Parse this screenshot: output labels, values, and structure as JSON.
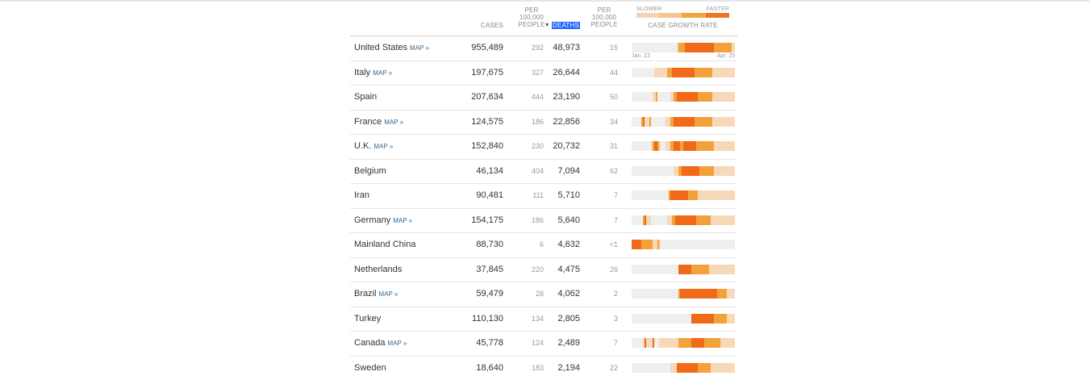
{
  "header": {
    "cases": "CASES",
    "per100k_cases": "PER\n100,000\nPEOPLE",
    "deaths": "DEATHS",
    "per100k_deaths": "PER\n100,000\nPEOPLE",
    "legend_slower": "SLOWER",
    "legend_faster": "FASTER",
    "growth": "CASE GROWTH RATE",
    "sort_icon": "▼"
  },
  "dates": {
    "start": "Jan. 22",
    "end": "Apr. 25"
  },
  "rows": [
    {
      "country": "United States",
      "map": "MAP »",
      "cases": "955,489",
      "per100k_cases": "292",
      "deaths": "48,973",
      "per100k_deaths": "15"
    },
    {
      "country": "Italy",
      "map": "MAP »",
      "cases": "197,675",
      "per100k_cases": "327",
      "deaths": "26,644",
      "per100k_deaths": "44"
    },
    {
      "country": "Spain",
      "map": "",
      "cases": "207,634",
      "per100k_cases": "444",
      "deaths": "23,190",
      "per100k_deaths": "50"
    },
    {
      "country": "France",
      "map": "MAP »",
      "cases": "124,575",
      "per100k_cases": "186",
      "deaths": "22,856",
      "per100k_deaths": "34"
    },
    {
      "country": "U.K.",
      "map": "MAP »",
      "cases": "152,840",
      "per100k_cases": "230",
      "deaths": "20,732",
      "per100k_deaths": "31"
    },
    {
      "country": "Belgium",
      "map": "",
      "cases": "46,134",
      "per100k_cases": "404",
      "deaths": "7,094",
      "per100k_deaths": "62"
    },
    {
      "country": "Iran",
      "map": "",
      "cases": "90,481",
      "per100k_cases": "111",
      "deaths": "5,710",
      "per100k_deaths": "7"
    },
    {
      "country": "Germany",
      "map": "MAP »",
      "cases": "154,175",
      "per100k_cases": "186",
      "deaths": "5,640",
      "per100k_deaths": "7"
    },
    {
      "country": "Mainland China",
      "map": "",
      "cases": "88,730",
      "per100k_cases": "6",
      "deaths": "4,632",
      "per100k_deaths": "<1"
    },
    {
      "country": "Netherlands",
      "map": "",
      "cases": "37,845",
      "per100k_cases": "220",
      "deaths": "4,475",
      "per100k_deaths": "26"
    },
    {
      "country": "Brazil",
      "map": "MAP »",
      "cases": "59,479",
      "per100k_cases": "28",
      "deaths": "4,062",
      "per100k_deaths": "2"
    },
    {
      "country": "Turkey",
      "map": "",
      "cases": "110,130",
      "per100k_cases": "134",
      "deaths": "2,805",
      "per100k_deaths": "3"
    },
    {
      "country": "Canada",
      "map": "MAP »",
      "cases": "45,778",
      "per100k_cases": "124",
      "deaths": "2,489",
      "per100k_deaths": "7"
    },
    {
      "country": "Sweden",
      "map": "",
      "cases": "18,640",
      "per100k_cases": "183",
      "deaths": "2,194",
      "per100k_deaths": "22"
    }
  ],
  "growth_rates": [
    [
      0,
      0,
      0,
      0,
      0,
      0,
      0,
      0,
      0,
      0,
      0,
      0,
      0,
      0,
      0,
      0,
      0,
      0,
      0,
      0,
      0,
      0,
      0,
      0,
      0,
      0,
      0,
      0,
      1,
      2,
      2,
      2,
      2,
      3,
      3,
      3,
      3,
      3,
      3,
      3,
      3,
      3,
      3,
      3,
      3,
      3,
      3,
      3,
      3,
      3,
      3,
      2,
      2,
      2,
      2,
      2,
      2,
      2,
      2,
      2,
      2,
      2,
      1,
      1
    ],
    [
      0,
      0,
      0,
      0,
      0,
      0,
      0,
      0,
      0,
      0,
      0,
      0,
      0,
      0,
      1,
      1,
      1,
      1,
      1,
      1,
      1,
      1,
      2,
      2,
      2,
      3,
      3,
      3,
      3,
      3,
      3,
      3,
      3,
      3,
      3,
      3,
      3,
      3,
      3,
      2,
      2,
      2,
      2,
      2,
      2,
      2,
      2,
      2,
      2,
      2,
      1,
      1,
      1,
      1,
      1,
      1,
      1,
      1,
      1,
      1,
      1,
      1,
      1,
      1
    ],
    [
      0,
      0,
      0,
      0,
      0,
      0,
      0,
      0,
      0,
      0,
      0,
      0,
      0,
      1,
      1,
      2,
      0,
      0,
      0,
      0,
      0,
      0,
      0,
      0,
      1,
      1,
      2,
      2,
      3,
      3,
      3,
      3,
      3,
      3,
      3,
      3,
      3,
      3,
      3,
      3,
      3,
      2,
      2,
      2,
      2,
      2,
      2,
      2,
      2,
      2,
      1,
      1,
      1,
      1,
      1,
      1,
      1,
      1,
      1,
      1,
      1,
      1,
      1,
      1
    ],
    [
      0,
      0,
      0,
      0,
      0,
      0,
      2,
      3,
      1,
      1,
      1,
      2,
      0,
      0,
      0,
      0,
      0,
      0,
      0,
      0,
      0,
      1,
      1,
      1,
      2,
      2,
      3,
      3,
      3,
      3,
      3,
      3,
      3,
      3,
      3,
      3,
      3,
      3,
      3,
      2,
      2,
      2,
      2,
      2,
      2,
      2,
      2,
      2,
      2,
      2,
      1,
      1,
      1,
      1,
      1,
      1,
      1,
      1,
      1,
      1,
      1,
      1,
      1,
      1
    ],
    [
      0,
      0,
      0,
      0,
      0,
      0,
      0,
      0,
      0,
      0,
      0,
      0,
      1,
      2,
      3,
      3,
      2,
      1,
      0,
      0,
      0,
      1,
      1,
      1,
      2,
      2,
      3,
      3,
      3,
      3,
      2,
      2,
      3,
      3,
      3,
      3,
      3,
      3,
      3,
      3,
      2,
      2,
      2,
      2,
      2,
      2,
      2,
      2,
      2,
      2,
      2,
      1,
      1,
      1,
      1,
      1,
      1,
      1,
      1,
      1,
      1,
      1,
      1,
      1
    ],
    [
      0,
      0,
      0,
      0,
      0,
      0,
      0,
      0,
      0,
      0,
      0,
      0,
      0,
      0,
      0,
      0,
      0,
      0,
      0,
      0,
      0,
      0,
      0,
      0,
      0,
      0,
      1,
      1,
      1,
      2,
      2,
      3,
      3,
      3,
      3,
      3,
      3,
      3,
      3,
      3,
      3,
      3,
      2,
      2,
      2,
      2,
      2,
      2,
      2,
      2,
      2,
      1,
      1,
      1,
      1,
      1,
      1,
      1,
      1,
      1,
      1,
      1,
      1,
      1
    ],
    [
      0,
      0,
      0,
      0,
      0,
      0,
      0,
      0,
      0,
      0,
      0,
      0,
      0,
      0,
      0,
      0,
      0,
      0,
      0,
      0,
      0,
      0,
      0,
      2,
      3,
      3,
      3,
      3,
      3,
      3,
      3,
      3,
      3,
      3,
      3,
      2,
      2,
      2,
      2,
      2,
      2,
      1,
      1,
      1,
      1,
      1,
      1,
      1,
      1,
      1,
      1,
      1,
      1,
      1,
      1,
      1,
      1,
      1,
      1,
      1,
      1,
      1,
      1,
      1
    ],
    [
      0,
      0,
      0,
      0,
      0,
      0,
      0,
      2,
      3,
      1,
      1,
      1,
      0,
      0,
      0,
      0,
      0,
      0,
      0,
      0,
      0,
      0,
      1,
      1,
      1,
      2,
      2,
      3,
      3,
      3,
      3,
      3,
      3,
      3,
      3,
      3,
      3,
      3,
      3,
      3,
      2,
      2,
      2,
      2,
      2,
      2,
      2,
      2,
      2,
      1,
      1,
      1,
      1,
      1,
      1,
      1,
      1,
      1,
      1,
      1,
      1,
      1,
      1,
      1
    ],
    [
      3,
      3,
      3,
      3,
      3,
      3,
      2,
      2,
      2,
      2,
      2,
      2,
      2,
      1,
      1,
      1,
      2,
      1,
      0,
      0,
      0,
      0,
      0,
      0,
      0,
      0,
      0,
      0,
      0,
      0,
      0,
      0,
      0,
      0,
      0,
      0,
      0,
      0,
      0,
      0,
      0,
      0,
      0,
      0,
      0,
      0,
      0,
      0,
      0,
      0,
      0,
      0,
      0,
      0,
      0,
      0,
      0,
      0,
      0,
      0,
      0,
      0,
      0,
      0
    ],
    [
      0,
      0,
      0,
      0,
      0,
      0,
      0,
      0,
      0,
      0,
      0,
      0,
      0,
      0,
      0,
      0,
      0,
      0,
      0,
      0,
      0,
      0,
      0,
      0,
      0,
      0,
      0,
      0,
      0,
      3,
      3,
      3,
      3,
      3,
      3,
      3,
      3,
      2,
      2,
      2,
      2,
      2,
      2,
      2,
      2,
      2,
      2,
      2,
      1,
      1,
      1,
      1,
      1,
      1,
      1,
      1,
      1,
      1,
      1,
      1,
      1,
      1,
      1,
      1
    ],
    [
      0,
      0,
      0,
      0,
      0,
      0,
      0,
      0,
      0,
      0,
      0,
      0,
      0,
      0,
      0,
      0,
      0,
      0,
      0,
      0,
      0,
      0,
      0,
      0,
      0,
      0,
      0,
      0,
      0,
      2,
      3,
      3,
      3,
      3,
      3,
      3,
      3,
      3,
      3,
      3,
      3,
      3,
      3,
      3,
      3,
      3,
      3,
      3,
      3,
      3,
      3,
      3,
      3,
      2,
      2,
      2,
      2,
      2,
      2,
      1,
      1,
      1,
      1,
      1
    ],
    [
      0,
      0,
      0,
      0,
      0,
      0,
      0,
      0,
      0,
      0,
      0,
      0,
      0,
      0,
      0,
      0,
      0,
      0,
      0,
      0,
      0,
      0,
      0,
      0,
      0,
      0,
      0,
      0,
      0,
      0,
      0,
      0,
      0,
      0,
      0,
      0,
      0,
      3,
      3,
      3,
      3,
      3,
      3,
      3,
      3,
      3,
      3,
      3,
      3,
      3,
      3,
      2,
      2,
      2,
      2,
      2,
      2,
      2,
      2,
      1,
      1,
      1,
      1,
      1
    ],
    [
      0,
      0,
      0,
      0,
      0,
      0,
      0,
      1,
      3,
      1,
      1,
      1,
      1,
      3,
      0,
      0,
      0,
      1,
      1,
      1,
      1,
      1,
      1,
      1,
      1,
      1,
      1,
      1,
      1,
      2,
      2,
      2,
      2,
      2,
      2,
      2,
      2,
      3,
      3,
      3,
      3,
      3,
      3,
      3,
      3,
      2,
      2,
      2,
      2,
      2,
      2,
      2,
      2,
      2,
      2,
      1,
      1,
      1,
      1,
      1,
      1,
      1,
      1,
      1
    ],
    [
      0,
      0,
      0,
      0,
      0,
      0,
      0,
      0,
      0,
      0,
      0,
      0,
      0,
      0,
      0,
      0,
      0,
      0,
      0,
      0,
      0,
      0,
      0,
      0,
      1,
      1,
      1,
      1,
      3,
      3,
      3,
      3,
      3,
      3,
      3,
      3,
      3,
      3,
      3,
      3,
      3,
      2,
      2,
      2,
      2,
      2,
      2,
      2,
      2,
      1,
      1,
      1,
      1,
      1,
      1,
      1,
      1,
      1,
      1,
      1,
      1,
      1,
      1,
      1
    ]
  ],
  "colors": {
    "level_0": "#efefef",
    "level_1": "#f7d8b8",
    "level_2": "#f3a23a",
    "level_3": "#f06a1a",
    "deaths_highlight": "#1b66ff",
    "map_link": "#326891"
  }
}
